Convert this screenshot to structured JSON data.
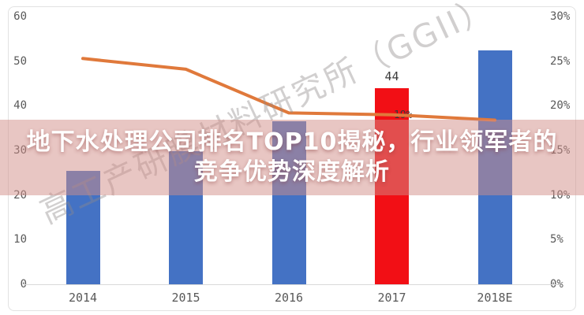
{
  "overlay": {
    "band_color": "#d18d87",
    "band_opacity": 0.5,
    "line1": "地下水处理公司排名TOP10揭秘，行业领军者的",
    "line2": "竞争优势深度解析"
  },
  "watermark": {
    "text": "高工产研膜材料研究所（GGII）"
  },
  "chart_data": {
    "type": "bar",
    "subtype": "combo-bar-line",
    "categories": [
      "2014",
      "2015",
      "2016",
      "2017",
      "2018E"
    ],
    "series": [
      {
        "name": "bar_values_left_axis",
        "type": "bar",
        "axis": "left",
        "values": [
          25.4,
          29.8,
          36.5,
          44,
          52.5
        ]
      },
      {
        "name": "line_percent_right_axis",
        "type": "line",
        "axis": "right",
        "values": [
          25.3,
          24.1,
          19.2,
          19.0,
          18.4
        ]
      }
    ],
    "highlight_category_index": 3,
    "data_labels": {
      "bar_2017": "44",
      "line_2017": "19%"
    },
    "left_axis": {
      "ticks": [
        "60",
        "50",
        "40",
        "30",
        "20",
        "10",
        "0"
      ],
      "range": [
        0,
        60
      ]
    },
    "right_axis": {
      "ticks": [
        "30%",
        "25%",
        "20%",
        "15%",
        "10%",
        "5%",
        "0%"
      ],
      "range": [
        0,
        30
      ]
    },
    "grid": false,
    "legend": false,
    "colors": {
      "bar": "#4472c4",
      "bar_highlight": "#f20f15",
      "line": "#e0793b",
      "axis_text": "#595959",
      "axis_line": "#d9d9d9"
    }
  }
}
